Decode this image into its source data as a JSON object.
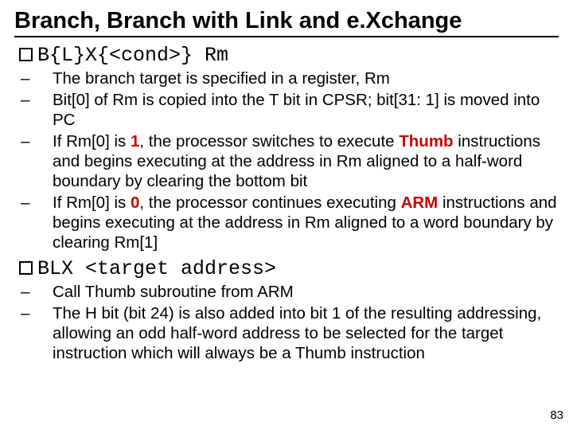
{
  "title": "Branch, Branch with Link and e.Xchange",
  "section1": {
    "code": "B{L}X{<cond>} Rm",
    "bullets": {
      "b1": "The branch target is specified in a register, Rm",
      "b2": "Bit[0] of Rm is copied into the T bit in CPSR; bit[31: 1] is moved into PC",
      "b3a": "If Rm[0] is ",
      "b3_one": "1",
      "b3b": ", the processor switches to execute ",
      "b3_thumb": "Thumb",
      "b3c": " instructions and begins executing at the address in Rm aligned to a half-word boundary by clearing the bottom bit",
      "b4a": "If Rm[0] is ",
      "b4_zero": "0",
      "b4b": ", the processor continues executing ",
      "b4_arm": "ARM",
      "b4c": " instructions and begins executing at the address in Rm aligned to a word boundary by clearing Rm[1]"
    }
  },
  "section2": {
    "code": "BLX <target address>",
    "bullets": {
      "b1": "Call Thumb subroutine from ARM",
      "b2": "The H bit (bit 24) is also added into bit 1 of the resulting addressing, allowing an odd half-word address to be selected for the target instruction which will always be a Thumb instruction"
    }
  },
  "pagenum": "83"
}
